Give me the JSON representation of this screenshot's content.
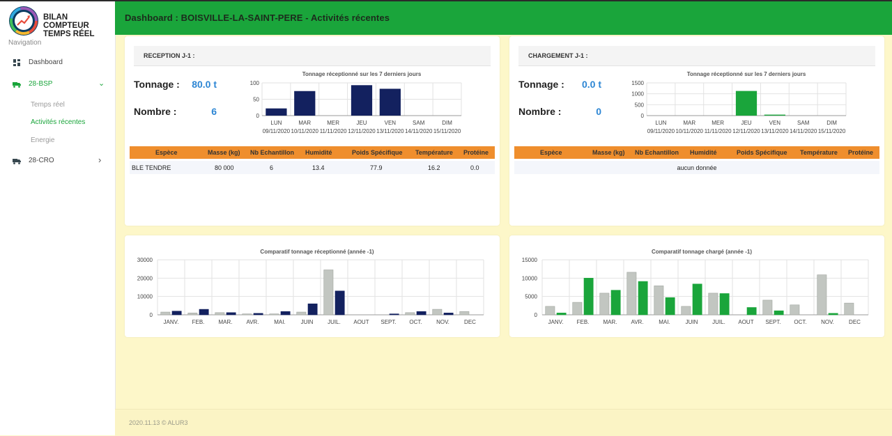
{
  "sidebar": {
    "brand_line1": "BILAN COMPTEUR",
    "brand_line2": "TEMPS RÉEL",
    "nav_heading": "Navigation",
    "items": [
      {
        "label": "Dashboard"
      },
      {
        "label": "28-BSP",
        "sub": [
          {
            "label": "Temps réel"
          },
          {
            "label": "Activités récentes"
          },
          {
            "label": "Energie"
          }
        ]
      },
      {
        "label": "28-CRO"
      }
    ]
  },
  "header": {
    "title": "Dashboard : BOISVILLE-LA-SAINT-PERE - Activités récentes"
  },
  "reception": {
    "title": "RECEPTION J-1 :",
    "tonnage_label": "Tonnage :",
    "tonnage_value": "80.0 t",
    "nombre_label": "Nombre :",
    "nombre_value": "6",
    "table_headers": [
      "Espèce",
      "Masse (kg)",
      "Nb Echantillon",
      "Humidité",
      "Poids Spécifique",
      "Température",
      "Protéine"
    ],
    "rows": [
      [
        "BLE TENDRE",
        "80 000",
        "6",
        "13.4",
        "77.9",
        "16.2",
        "0.0"
      ]
    ]
  },
  "chargement": {
    "title": "CHARGEMENT J-1 :",
    "tonnage_label": "Tonnage :",
    "tonnage_value": "0.0 t",
    "nombre_label": "Nombre :",
    "nombre_value": "0",
    "table_headers": [
      "Espèce",
      "Masse (kg)",
      "Nb Echantillon",
      "Humidité",
      "Poids Spécifique",
      "Température",
      "Protéine"
    ],
    "empty_text": "aucun donnée"
  },
  "footer": {
    "text": "2020.11.13 © ALUR3"
  },
  "chart_data": [
    {
      "type": "bar",
      "title": "Tonnage réceptionné sur les 7 derniers jours",
      "categories": [
        "LUN",
        "MAR",
        "MER",
        "JEU",
        "VEN",
        "SAM",
        "DIM"
      ],
      "dates": [
        "09/11/2020",
        "10/11/2020",
        "11/11/2020",
        "12/11/2020",
        "13/11/2020",
        "14/11/2020",
        "15/11/2020"
      ],
      "values": [
        22,
        75,
        0,
        93,
        82,
        0,
        0
      ],
      "ylim": [
        0,
        100
      ],
      "yticks": [
        0,
        50,
        100
      ],
      "color": "#13215f",
      "grid": true
    },
    {
      "type": "bar",
      "title": "Tonnage réceptionné sur les 7 derniers jours",
      "categories": [
        "LUN",
        "MAR",
        "MER",
        "JEU",
        "VEN",
        "SAM",
        "DIM"
      ],
      "dates": [
        "09/11/2020",
        "10/11/2020",
        "11/11/2020",
        "12/11/2020",
        "13/11/2020",
        "14/11/2020",
        "15/11/2020"
      ],
      "values": [
        0,
        0,
        0,
        1130,
        45,
        0,
        0
      ],
      "ylim": [
        0,
        1500
      ],
      "yticks": [
        0,
        500,
        1000,
        1500
      ],
      "color": "#1aa53b",
      "grid": true
    },
    {
      "type": "bar",
      "title": "Comparatif tonnage réceptionné (année -1)",
      "categories": [
        "JANV.",
        "FEB.",
        "MAR.",
        "AVR.",
        "MAI.",
        "JUIN",
        "JUIL.",
        "AOUT",
        "SEPT.",
        "OCT.",
        "NOV.",
        "DEC"
      ],
      "series": [
        {
          "values": [
            1500,
            1000,
            1200,
            500,
            500,
            1500,
            24500,
            0,
            0,
            1200,
            3000,
            1800
          ],
          "color": "#c2c6c1"
        },
        {
          "values": [
            2000,
            3000,
            1200,
            800,
            1800,
            6000,
            13000,
            0,
            500,
            1800,
            1000,
            0
          ],
          "color": "#13215f"
        }
      ],
      "ylim": [
        0,
        30000
      ],
      "yticks": [
        0,
        10000,
        20000,
        30000
      ],
      "grid": true
    },
    {
      "type": "bar",
      "title": "Comparatif tonnage chargé (année -1)",
      "categories": [
        "JANV.",
        "FEB.",
        "MAR.",
        "AVR.",
        "MAI.",
        "JUIN",
        "JUIL.",
        "AOUT",
        "SEPT.",
        "OCT.",
        "NOV.",
        "DEC"
      ],
      "series": [
        {
          "values": [
            2300,
            3400,
            5900,
            11600,
            7900,
            2300,
            5900,
            0,
            4000,
            2700,
            10900,
            3200
          ],
          "color": "#c2c6c1"
        },
        {
          "values": [
            500,
            10000,
            6700,
            9100,
            4700,
            8400,
            5800,
            2000,
            1100,
            0,
            400,
            0
          ],
          "color": "#1aa53b"
        }
      ],
      "ylim": [
        0,
        15000
      ],
      "yticks": [
        0,
        5000,
        10000,
        15000
      ],
      "grid": true
    }
  ]
}
